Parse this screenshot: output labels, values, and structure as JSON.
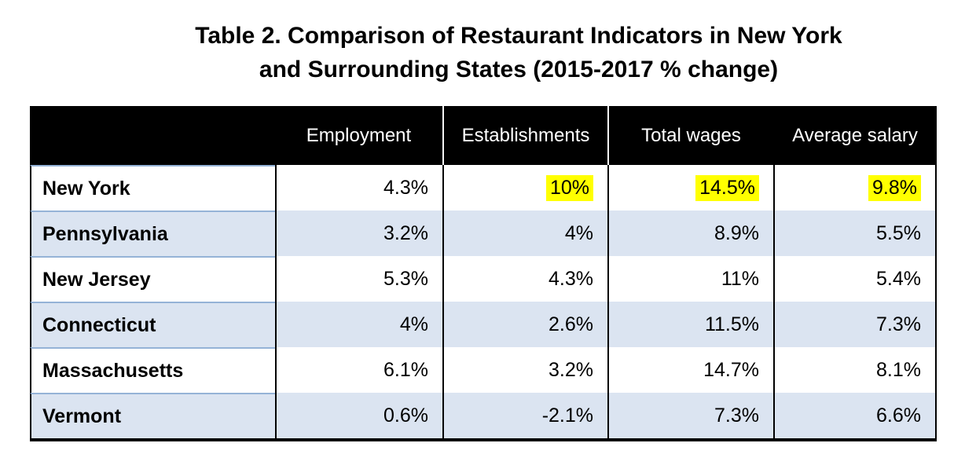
{
  "title": {
    "line1": "Table 2. Comparison of Restaurant Indicators in New York",
    "line2": "and Surrounding States (2015-2017 % change)"
  },
  "table": {
    "header": {
      "state_col": "",
      "cols": [
        "Employment",
        "Establishments",
        "Total wages",
        "Average salary"
      ]
    },
    "rows": [
      {
        "state": "New York",
        "values": [
          "4.3%",
          "10%",
          "14.5%",
          "9.8%"
        ]
      },
      {
        "state": "Pennsylvania",
        "values": [
          "3.2%",
          "4%",
          "8.9%",
          "5.5%"
        ]
      },
      {
        "state": "New Jersey",
        "values": [
          "5.3%",
          "4.3%",
          "11%",
          "5.4%"
        ]
      },
      {
        "state": "Connecticut",
        "values": [
          "4%",
          "2.6%",
          "11.5%",
          "7.3%"
        ]
      },
      {
        "state": "Massachusetts",
        "values": [
          "6.1%",
          "3.2%",
          "14.7%",
          "8.1%"
        ]
      },
      {
        "state": "Vermont",
        "values": [
          "0.6%",
          "-2.1%",
          "7.3%",
          "6.6%"
        ]
      }
    ],
    "colors": {
      "header_bg": "#000000",
      "header_text": "#ffffff",
      "alt_row_bg": "#dbe4f1",
      "state_row_divider": "#95b3d7",
      "highlight": "#ffff00"
    }
  },
  "chart_data": {
    "type": "table",
    "title": "Table 2. Comparison of Restaurant Indicators in New York and Surrounding States (2015-2017 % change)",
    "columns": [
      "Employment",
      "Establishments",
      "Total wages",
      "Average salary"
    ],
    "row_labels": [
      "New York",
      "Pennsylvania",
      "New Jersey",
      "Connecticut",
      "Massachusetts",
      "Vermont"
    ],
    "values_pct": [
      [
        4.3,
        10,
        14.5,
        9.8
      ],
      [
        3.2,
        4,
        8.9,
        5.5
      ],
      [
        5.3,
        4.3,
        11,
        5.4
      ],
      [
        4,
        2.6,
        11.5,
        7.3
      ],
      [
        6.1,
        3.2,
        14.7,
        8.1
      ],
      [
        0.6,
        -2.1,
        7.3,
        6.6
      ]
    ],
    "highlighted_cells": [
      {
        "row": "New York",
        "column": "Establishments",
        "value_pct": 10
      },
      {
        "row": "New York",
        "column": "Total wages",
        "value_pct": 14.5
      },
      {
        "row": "New York",
        "column": "Average salary",
        "value_pct": 9.8
      }
    ],
    "units": "% change 2015-2017"
  }
}
